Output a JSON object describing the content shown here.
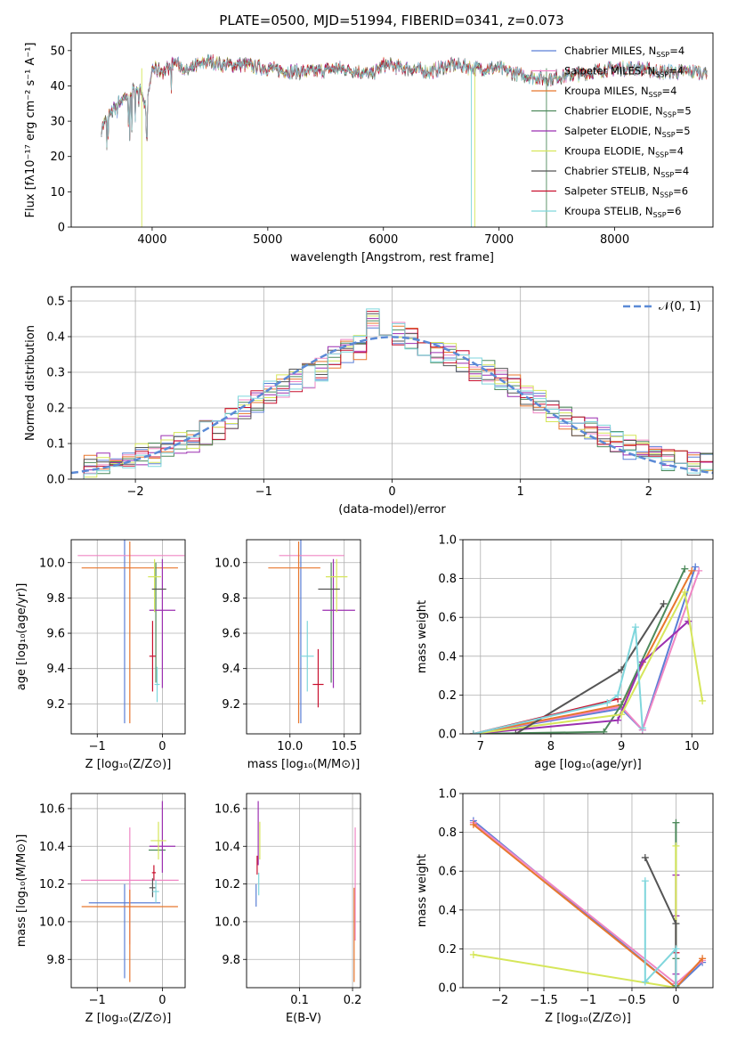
{
  "title": "PLATE=0500, MJD=51994, FIBERID=0341, z=0.073",
  "models": [
    {
      "name": "Chabrier MILES",
      "nssp": "4",
      "color": "#5b7fd6"
    },
    {
      "name": "Salpeter MILES",
      "nssp": "4",
      "color": "#ef86c4"
    },
    {
      "name": "Kroupa MILES",
      "nssp": "4",
      "color": "#e8772e"
    },
    {
      "name": "Chabrier ELODIE",
      "nssp": "5",
      "color": "#4e8a5c"
    },
    {
      "name": "Salpeter ELODIE",
      "nssp": "5",
      "color": "#9b2fb0"
    },
    {
      "name": "Kroupa ELODIE",
      "nssp": "4",
      "color": "#d6e65a"
    },
    {
      "name": "Chabrier STELIB",
      "nssp": "4",
      "color": "#555555"
    },
    {
      "name": "Salpeter STELIB",
      "nssp": "6",
      "color": "#c8102e"
    },
    {
      "name": "Kroupa STELIB",
      "nssp": "6",
      "color": "#7fd6dc"
    }
  ],
  "nssp_prefix": "N",
  "nssp_sub": "SSP",
  "nssp_suffix": "=",
  "chart_data": [
    {
      "id": "spectrum",
      "type": "line",
      "xlabel": "wavelength [Angstrom, rest frame]",
      "ylabel": "Flux [fλ10⁻¹⁷ erg cm⁻² s⁻¹ A⁻¹]",
      "xlim": [
        3300,
        8850
      ],
      "ylim": [
        0,
        55
      ],
      "xticks": [
        4000,
        5000,
        6000,
        7000,
        8000
      ],
      "yticks": [
        0,
        10,
        20,
        30,
        40,
        50
      ],
      "grid": false,
      "legend": "top-right",
      "x": [
        3560,
        3600,
        3700,
        3800,
        3900,
        3950,
        4000,
        4100,
        4200,
        4300,
        4400,
        4500,
        4600,
        4800,
        5000,
        5200,
        5400,
        5600,
        5800,
        5900,
        6000,
        6200,
        6400,
        6600,
        6800,
        7000,
        7200,
        7400,
        7600,
        7800,
        8000,
        8200,
        8400,
        8600,
        8800
      ],
      "y": [
        28,
        30,
        35,
        38,
        40,
        33,
        45,
        44,
        47,
        44,
        46,
        47,
        46,
        46,
        45,
        44,
        44,
        45,
        44,
        43,
        46,
        45,
        44,
        46,
        45,
        45,
        43,
        42,
        43,
        44,
        45,
        45,
        44,
        44,
        44
      ]
    },
    {
      "id": "residuals",
      "type": "step",
      "xlabel": "(data-model)/error",
      "ylabel": "Normed distribution",
      "xlim": [
        -2.5,
        2.5
      ],
      "ylim": [
        0,
        0.54
      ],
      "xticks": [
        -2,
        -1,
        0,
        1,
        2
      ],
      "yticks": [
        0.0,
        0.1,
        0.2,
        0.3,
        0.4,
        0.5
      ],
      "grid": true,
      "legend": "top-right",
      "reference_label": "𝒩(0, 1)",
      "reference_color": "#5b8ad6",
      "bin_edges": [
        -2.5,
        -2.4,
        -2.3,
        -2.2,
        -2.1,
        -2.0,
        -1.9,
        -1.8,
        -1.7,
        -1.6,
        -1.5,
        -1.4,
        -1.3,
        -1.2,
        -1.1,
        -1.0,
        -0.9,
        -0.8,
        -0.7,
        -0.6,
        -0.5,
        -0.4,
        -0.3,
        -0.2,
        -0.1,
        0.0,
        0.1,
        0.2,
        0.3,
        0.4,
        0.5,
        0.6,
        0.7,
        0.8,
        0.9,
        1.0,
        1.1,
        1.2,
        1.3,
        1.4,
        1.5,
        1.6,
        1.7,
        1.8,
        1.9,
        2.0,
        2.1,
        2.2,
        2.3,
        2.4,
        2.5
      ],
      "base_values": [
        0.03,
        0.04,
        0.04,
        0.05,
        0.05,
        0.07,
        0.07,
        0.09,
        0.1,
        0.11,
        0.13,
        0.14,
        0.17,
        0.2,
        0.22,
        0.24,
        0.26,
        0.28,
        0.29,
        0.31,
        0.34,
        0.36,
        0.37,
        0.45,
        0.38,
        0.41,
        0.39,
        0.37,
        0.36,
        0.35,
        0.33,
        0.31,
        0.3,
        0.28,
        0.26,
        0.24,
        0.22,
        0.19,
        0.17,
        0.15,
        0.14,
        0.12,
        0.1,
        0.09,
        0.08,
        0.07,
        0.05,
        0.05,
        0.04,
        0.04
      ]
    },
    {
      "id": "age-vs-Z",
      "type": "errorbar",
      "xlabel": "Z [log₁₀(Z/Z⊙)]",
      "ylabel": "age  [log₁₀(age/yr)]",
      "xlim": [
        -1.4,
        0.35
      ],
      "ylim": [
        9.03,
        10.13
      ],
      "xticks": [
        -1,
        0
      ],
      "yticks": [
        9.2,
        9.4,
        9.6,
        9.8,
        10.0
      ],
      "grid": true,
      "points": [
        {
          "model": 0,
          "x": -0.58,
          "y": 9.62,
          "xerr": [
            0,
            0
          ],
          "yerr": [
            0.53,
            0.51
          ]
        },
        {
          "model": 1,
          "x": -0.56,
          "y": 10.04,
          "xerr": [
            0.74,
            0.9
          ],
          "yerr": [
            0,
            0
          ]
        },
        {
          "model": 2,
          "x": -0.5,
          "y": 9.97,
          "xerr": [
            0.74,
            0.74
          ],
          "yerr": [
            0.88,
            0.15
          ]
        },
        {
          "model": 3,
          "x": -0.1,
          "y": 9.5,
          "xerr": [
            0,
            0
          ],
          "yerr": [
            0.18,
            0.5
          ]
        },
        {
          "model": 4,
          "x": 0.0,
          "y": 9.73,
          "xerr": [
            0.2,
            0.2
          ],
          "yerr": [
            0.44,
            0.29
          ]
        },
        {
          "model": 5,
          "x": -0.12,
          "y": 9.92,
          "xerr": [
            0.1,
            0.1
          ],
          "yerr": [
            0.2,
            0.1
          ]
        },
        {
          "model": 6,
          "x": -0.05,
          "y": 9.85,
          "xerr": [
            0.11,
            0.11
          ],
          "yerr": [
            0,
            0
          ]
        },
        {
          "model": 7,
          "x": -0.15,
          "y": 9.47,
          "xerr": [
            0.05,
            0.05
          ],
          "yerr": [
            0.2,
            0.2
          ]
        },
        {
          "model": 8,
          "x": -0.08,
          "y": 9.31,
          "xerr": [
            0.04,
            0.04
          ],
          "yerr": [
            0.1,
            0.1
          ]
        }
      ]
    },
    {
      "id": "age-vs-mass",
      "type": "errorbar",
      "xlabel": "mass [log₁₀(M/M⊙)]",
      "ylabel": "",
      "xlim": [
        9.6,
        10.65
      ],
      "ylim": [
        9.03,
        10.13
      ],
      "xticks": [
        10.0,
        10.5
      ],
      "yticks": [
        9.2,
        9.4,
        9.6,
        9.8,
        10.0
      ],
      "grid": true,
      "points": [
        {
          "model": 0,
          "x": 10.1,
          "y": 9.62,
          "xerr": [
            0,
            0
          ],
          "yerr": [
            0.53,
            0.51
          ]
        },
        {
          "model": 1,
          "x": 10.2,
          "y": 10.04,
          "xerr": [
            0.3,
            0.3
          ],
          "yerr": [
            0,
            0
          ]
        },
        {
          "model": 2,
          "x": 10.08,
          "y": 9.97,
          "xerr": [
            0.28,
            0.2
          ],
          "yerr": [
            0.88,
            0.15
          ]
        },
        {
          "model": 3,
          "x": 10.38,
          "y": 9.5,
          "xerr": [
            0,
            0
          ],
          "yerr": [
            0.18,
            0.5
          ]
        },
        {
          "model": 4,
          "x": 10.4,
          "y": 9.73,
          "xerr": [
            0.1,
            0.2
          ],
          "yerr": [
            0.44,
            0.29
          ]
        },
        {
          "model": 5,
          "x": 10.43,
          "y": 9.92,
          "xerr": [
            0.1,
            0.1
          ],
          "yerr": [
            0.2,
            0.1
          ]
        },
        {
          "model": 6,
          "x": 10.36,
          "y": 9.85,
          "xerr": [
            0.1,
            0.1
          ],
          "yerr": [
            0,
            0
          ]
        },
        {
          "model": 7,
          "x": 10.26,
          "y": 9.31,
          "xerr": [
            0.05,
            0.05
          ],
          "yerr": [
            0.13,
            0.2
          ]
        },
        {
          "model": 8,
          "x": 10.16,
          "y": 9.47,
          "xerr": [
            0.06,
            0.06
          ],
          "yerr": [
            0.2,
            0.2
          ]
        }
      ]
    },
    {
      "id": "weight-vs-age",
      "type": "line",
      "xlabel": "age  [log₁₀(age/yr)]",
      "ylabel": "mass weight",
      "xlim": [
        6.75,
        10.3
      ],
      "ylim": [
        0,
        1.0
      ],
      "xticks": [
        7,
        8,
        9,
        10
      ],
      "yticks": [
        0.0,
        0.2,
        0.4,
        0.6,
        0.8,
        1.0
      ],
      "grid": true,
      "series": [
        {
          "model": 0,
          "x": [
            6.9,
            9.0,
            9.3,
            10.05
          ],
          "y": [
            0.0,
            0.13,
            0.02,
            0.86
          ]
        },
        {
          "model": 1,
          "x": [
            6.9,
            9.0,
            9.3,
            10.1
          ],
          "y": [
            0.0,
            0.14,
            0.02,
            0.84
          ]
        },
        {
          "model": 2,
          "x": [
            6.9,
            9.0,
            10.0
          ],
          "y": [
            0.0,
            0.15,
            0.84
          ]
        },
        {
          "model": 3,
          "x": [
            6.9,
            8.75,
            9.0,
            9.9
          ],
          "y": [
            0.0,
            0.01,
            0.15,
            0.85
          ]
        },
        {
          "model": 4,
          "x": [
            6.9,
            8.95,
            9.3,
            9.95
          ],
          "y": [
            0.0,
            0.07,
            0.37,
            0.58
          ]
        },
        {
          "model": 5,
          "x": [
            6.9,
            9.0,
            9.9,
            10.15
          ],
          "y": [
            0.0,
            0.1,
            0.73,
            0.17
          ]
        },
        {
          "model": 6,
          "x": [
            7.5,
            9.0,
            9.6
          ],
          "y": [
            0.0,
            0.33,
            0.67
          ]
        },
        {
          "model": 7,
          "x": [
            6.9,
            8.95
          ],
          "y": [
            0.0,
            0.18
          ]
        },
        {
          "model": 8,
          "x": [
            6.9,
            8.8,
            8.95,
            9.2,
            9.3
          ],
          "y": [
            0.0,
            0.16,
            0.2,
            0.55,
            0.03
          ]
        }
      ]
    },
    {
      "id": "mass-vs-Z",
      "type": "errorbar",
      "xlabel": "Z [log₁₀(Z/Z⊙)]",
      "ylabel": "mass [log₁₀(M/M⊙)]",
      "xlim": [
        -1.4,
        0.35
      ],
      "ylim": [
        9.65,
        10.68
      ],
      "xticks": [
        -1,
        0
      ],
      "yticks": [
        9.8,
        10.0,
        10.2,
        10.4,
        10.6
      ],
      "grid": true,
      "points": [
        {
          "model": 0,
          "x": -0.58,
          "y": 10.1,
          "xerr": [
            0.55,
            0.55
          ],
          "yerr": [
            0.4,
            0.1
          ]
        },
        {
          "model": 1,
          "x": -0.5,
          "y": 10.22,
          "xerr": [
            0.75,
            0.75
          ],
          "yerr": [
            0.34,
            0.28
          ]
        },
        {
          "model": 2,
          "x": -0.5,
          "y": 10.08,
          "xerr": [
            0.74,
            0.74
          ],
          "yerr": [
            0.4,
            0.09
          ]
        },
        {
          "model": 3,
          "x": -0.08,
          "y": 10.38,
          "xerr": [
            0.13,
            0.13
          ],
          "yerr": [
            0.0,
            0.0
          ]
        },
        {
          "model": 4,
          "x": 0.0,
          "y": 10.4,
          "xerr": [
            0.2,
            0.2
          ],
          "yerr": [
            0.14,
            0.24
          ]
        },
        {
          "model": 5,
          "x": -0.06,
          "y": 10.43,
          "xerr": [
            0.12,
            0.12
          ],
          "yerr": [
            0.1,
            0.1
          ]
        },
        {
          "model": 6,
          "x": -0.15,
          "y": 10.18,
          "xerr": [
            0.05,
            0.05
          ],
          "yerr": [
            0.05,
            0.05
          ]
        },
        {
          "model": 7,
          "x": -0.13,
          "y": 10.26,
          "xerr": [
            0.03,
            0.03
          ],
          "yerr": [
            0.04,
            0.04
          ]
        },
        {
          "model": 8,
          "x": -0.1,
          "y": 10.16,
          "xerr": [
            0.05,
            0.05
          ],
          "yerr": [
            0.06,
            0.06
          ]
        }
      ]
    },
    {
      "id": "mass-vs-ebv",
      "type": "errorbar",
      "xlabel": "E(B-V)",
      "ylabel": "",
      "xlim": [
        0.0,
        0.215
      ],
      "ylim": [
        9.65,
        10.68
      ],
      "xticks": [
        0.1,
        0.2
      ],
      "yticks": [
        9.8,
        10.0,
        10.2,
        10.4,
        10.6
      ],
      "grid": true,
      "points": [
        {
          "model": 0,
          "x": 0.018,
          "y": 10.1,
          "xerr": [
            0,
            0
          ],
          "yerr": [
            0.02,
            0.1
          ]
        },
        {
          "model": 4,
          "x": 0.022,
          "y": 10.4,
          "xerr": [
            0,
            0
          ],
          "yerr": [
            0.1,
            0.24
          ]
        },
        {
          "model": 5,
          "x": 0.025,
          "y": 10.43,
          "xerr": [
            0,
            0
          ],
          "yerr": [
            0.1,
            0.1
          ]
        },
        {
          "model": 7,
          "x": 0.02,
          "y": 10.3,
          "xerr": [
            0,
            0
          ],
          "yerr": [
            0.05,
            0.05
          ]
        },
        {
          "model": 8,
          "x": 0.023,
          "y": 10.2,
          "xerr": [
            0,
            0
          ],
          "yerr": [
            0.06,
            0.06
          ]
        },
        {
          "model": 1,
          "x": 0.205,
          "y": 10.2,
          "xerr": [
            0,
            0
          ],
          "yerr": [
            0.3,
            0.3
          ]
        },
        {
          "model": 2,
          "x": 0.203,
          "y": 10.08,
          "xerr": [
            0,
            0
          ],
          "yerr": [
            0.4,
            0.1
          ]
        }
      ]
    },
    {
      "id": "weight-vs-Z",
      "type": "line",
      "xlabel": "Z [log₁₀(Z/Z⊙)]",
      "ylabel": "mass weight",
      "xlim": [
        -2.42,
        0.42
      ],
      "ylim": [
        0,
        1.0
      ],
      "xticks": [
        -2.0,
        -1.5,
        -1.0,
        -0.5,
        0.0
      ],
      "yticks": [
        0.0,
        0.2,
        0.4,
        0.6,
        0.8,
        1.0
      ],
      "grid": true,
      "series": [
        {
          "model": 0,
          "x": [
            -2.3,
            0.0,
            0.3
          ],
          "y": [
            0.86,
            0.0,
            0.13
          ]
        },
        {
          "model": 1,
          "x": [
            -2.3,
            0.0,
            0.3
          ],
          "y": [
            0.85,
            0.02,
            0.14
          ]
        },
        {
          "model": 2,
          "x": [
            -2.3,
            0.0,
            0.3
          ],
          "y": [
            0.84,
            0.0,
            0.15
          ]
        },
        {
          "model": 3,
          "x": [
            0.0,
            0.0,
            0.0
          ],
          "y": [
            0.85,
            0.15,
            0.01
          ]
        },
        {
          "model": 4,
          "x": [
            0.0,
            0.0,
            0.0
          ],
          "y": [
            0.58,
            0.37,
            0.07
          ]
        },
        {
          "model": 5,
          "x": [
            -2.3,
            0.0,
            0.0
          ],
          "y": [
            0.17,
            0.0,
            0.73
          ]
        },
        {
          "model": 6,
          "x": [
            -0.35,
            0.0,
            0.0
          ],
          "y": [
            0.67,
            0.33,
            0.0
          ]
        },
        {
          "model": 7,
          "x": [
            0.0,
            0.0
          ],
          "y": [
            0.18,
            0.0
          ]
        },
        {
          "model": 8,
          "x": [
            -0.35,
            -0.35,
            0.0,
            0.0
          ],
          "y": [
            0.55,
            0.03,
            0.2,
            0.0
          ]
        }
      ]
    }
  ]
}
